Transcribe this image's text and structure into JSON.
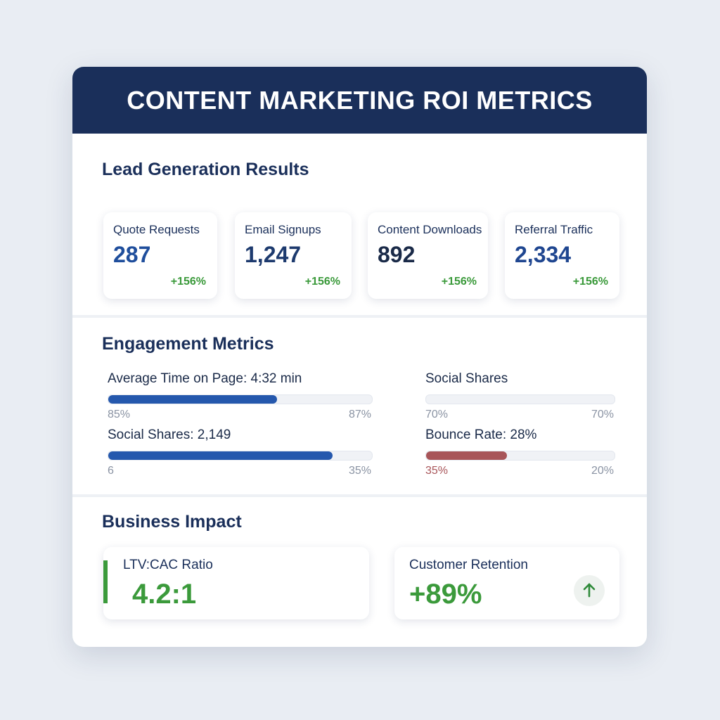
{
  "header": {
    "title": "CONTENT MARKETING ROI METRICS"
  },
  "lead_generation": {
    "title": "Lead Generation Results",
    "cards": [
      {
        "label": "Quote Requests",
        "value": "287",
        "change": "+156%",
        "color": "#1f4e9c"
      },
      {
        "label": "Email Signups",
        "value": "1,247",
        "change": "+156%",
        "color": "#1d3a6e"
      },
      {
        "label": "Content Downloads",
        "value": "892",
        "change": "+156%",
        "color": "#1a2a48"
      },
      {
        "label": "Referral Traffic",
        "value": "2,334",
        "change": "+156%",
        "color": "#1f4690"
      }
    ]
  },
  "engagement": {
    "title": "Engagement Metrics",
    "bars": [
      {
        "label": "Average Time on Page: 4:32 min",
        "left": "85%",
        "right": "87%",
        "fill": 64,
        "color": "#2558ad"
      },
      {
        "label": "Social Shares",
        "left": "70%",
        "right": "70%",
        "fill": 0,
        "color": "#2558ad"
      },
      {
        "label": "Social Shares: 2,149",
        "left": "6",
        "right": "35%",
        "fill": 85,
        "color": "#2558ad"
      },
      {
        "label": "Bounce Rate: 28%",
        "left": "35%",
        "right": "20%",
        "fill": 43,
        "color": "#a85559"
      }
    ]
  },
  "business_impact": {
    "title": "Business Impact",
    "cards": [
      {
        "label": "LTV:CAC Ratio",
        "value": "4.2:1"
      },
      {
        "label": "Customer Retention",
        "value": "+89%"
      }
    ]
  }
}
